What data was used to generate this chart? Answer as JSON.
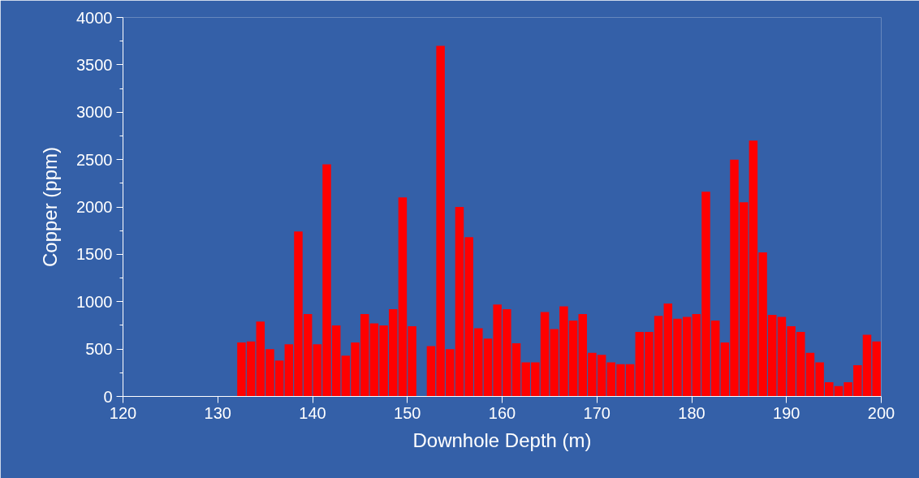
{
  "chart_data": {
    "type": "bar",
    "xlabel": "Downhole Depth (m)",
    "ylabel": "Copper (ppm)",
    "color": "#ff0000",
    "x": [
      132.5,
      133.5,
      134.5,
      135.5,
      136.5,
      137.5,
      138.5,
      139.5,
      140.5,
      141.5,
      142.5,
      143.5,
      144.5,
      145.5,
      146.5,
      147.5,
      148.5,
      149.5,
      150.5,
      151.5,
      152.5,
      153.5,
      154.5,
      155.5,
      156.5,
      157.5,
      158.5,
      159.5,
      160.5,
      161.5,
      162.5,
      163.5,
      164.5,
      165.5,
      166.5,
      167.5,
      168.5,
      169.5,
      170.5,
      171.5,
      172.5,
      173.5,
      174.5,
      175.5,
      176.5,
      177.5,
      178.5,
      179.5,
      180.5,
      181.5,
      182.5,
      183.5,
      184.5,
      185.5,
      186.5,
      187.5,
      188.5,
      189.5,
      190.5,
      191.5,
      192.5,
      193.5,
      194.5,
      195.5,
      196.5,
      197.5,
      198.5,
      199.5
    ],
    "values": [
      570,
      580,
      790,
      500,
      380,
      550,
      1740,
      870,
      550,
      2450,
      750,
      430,
      570,
      870,
      770,
      750,
      920,
      2100,
      740,
      null,
      530,
      3700,
      500,
      2000,
      1680,
      720,
      610,
      970,
      920,
      560,
      360,
      360,
      890,
      710,
      950,
      800,
      870,
      460,
      440,
      360,
      340,
      340,
      680,
      680,
      850,
      980,
      820,
      840,
      870,
      2160,
      800,
      570,
      2500,
      2050,
      2700,
      1520,
      860,
      840,
      740,
      680,
      460,
      360,
      150,
      110,
      150,
      330,
      650,
      580
    ],
    "xlim": [
      120,
      200
    ],
    "xticks": [
      120,
      130,
      140,
      150,
      160,
      170,
      180,
      190,
      200
    ],
    "ylim": [
      0,
      4000
    ],
    "yticks": [
      0,
      500,
      1000,
      1500,
      2000,
      2500,
      3000,
      3500,
      4000
    ],
    "grid": false
  }
}
